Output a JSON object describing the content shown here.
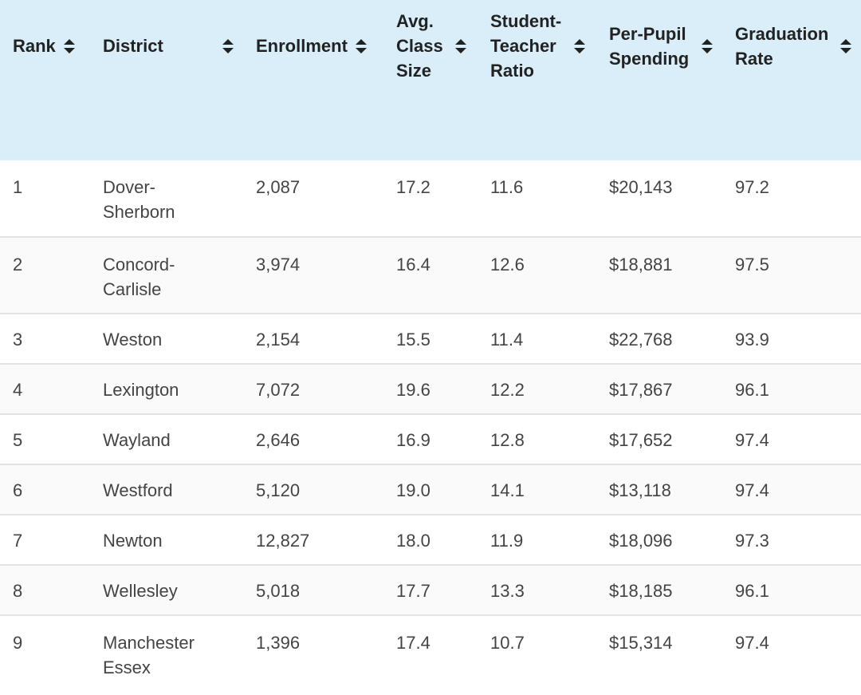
{
  "columns": {
    "rank": "Rank",
    "district": "District",
    "enrollment": "Enrollment",
    "class_size": "Avg. Class Size",
    "ratio": "Student-Teacher Ratio",
    "spending": "Per-Pupil Spending",
    "graduation": "Graduation Rate"
  },
  "sort_icon": "sort-up-down-icon",
  "rows": [
    {
      "rank": "1",
      "district": "Dover-Sherborn",
      "enrollment": "2,087",
      "class_size": "17.2",
      "ratio": "11.6",
      "spending": "$20,143",
      "graduation": "97.2"
    },
    {
      "rank": "2",
      "district": "Concord-Carlisle",
      "enrollment": "3,974",
      "class_size": "16.4",
      "ratio": "12.6",
      "spending": "$18,881",
      "graduation": "97.5"
    },
    {
      "rank": "3",
      "district": "Weston",
      "enrollment": "2,154",
      "class_size": "15.5",
      "ratio": "11.4",
      "spending": "$22,768",
      "graduation": "93.9"
    },
    {
      "rank": "4",
      "district": "Lexington",
      "enrollment": "7,072",
      "class_size": "19.6",
      "ratio": "12.2",
      "spending": "$17,867",
      "graduation": "96.1"
    },
    {
      "rank": "5",
      "district": "Wayland",
      "enrollment": "2,646",
      "class_size": "16.9",
      "ratio": "12.8",
      "spending": "$17,652",
      "graduation": "97.4"
    },
    {
      "rank": "6",
      "district": "Westford",
      "enrollment": "5,120",
      "class_size": "19.0",
      "ratio": "14.1",
      "spending": "$13,118",
      "graduation": "97.4"
    },
    {
      "rank": "7",
      "district": "Newton",
      "enrollment": "12,827",
      "class_size": "18.0",
      "ratio": "11.9",
      "spending": "$18,096",
      "graduation": "97.3"
    },
    {
      "rank": "8",
      "district": "Wellesley",
      "enrollment": "5,018",
      "class_size": "17.7",
      "ratio": "13.3",
      "spending": "$18,185",
      "graduation": "96.1"
    },
    {
      "rank": "9",
      "district": "Manchester Essex",
      "enrollment": "1,396",
      "class_size": "17.4",
      "ratio": "10.7",
      "spending": "$15,314",
      "graduation": "97.4"
    }
  ]
}
